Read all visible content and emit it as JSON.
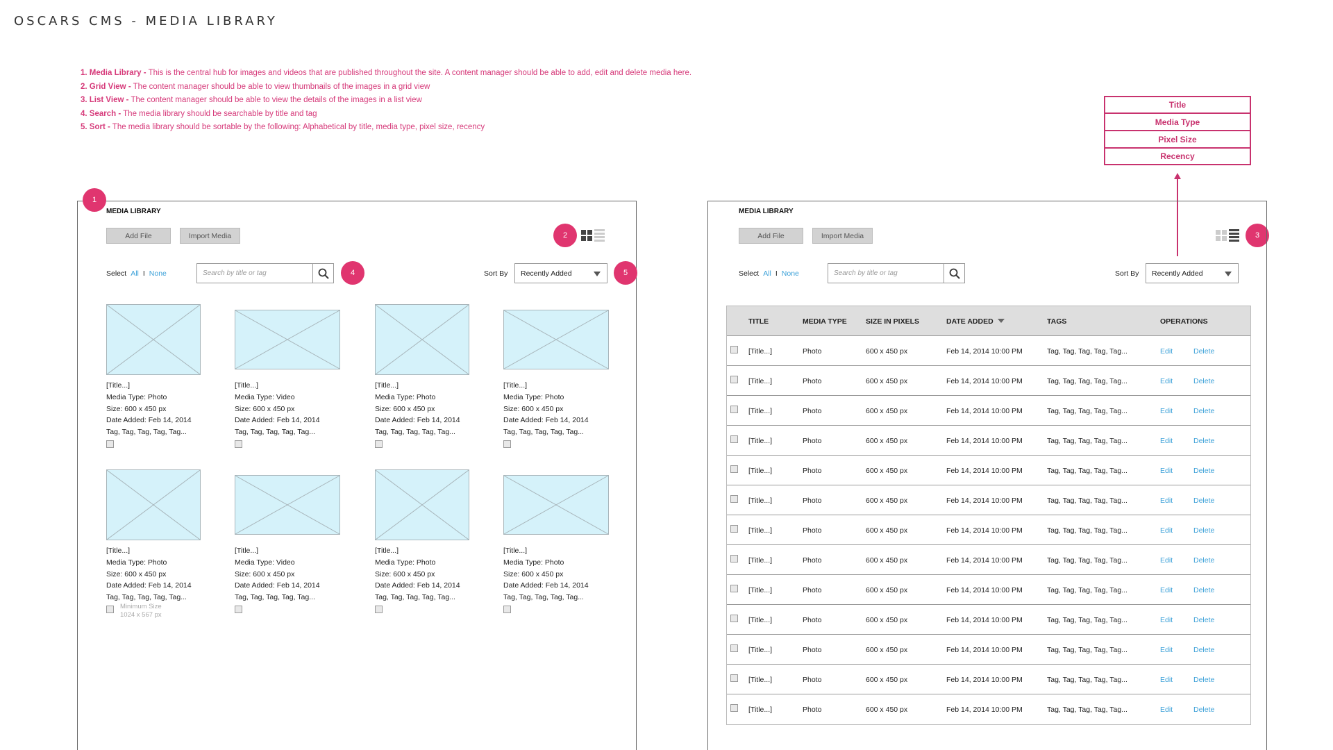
{
  "page_title": "OSCARS CMS - MEDIA LIBRARY",
  "notes": [
    {
      "label": "1. Media Library -",
      "text": " This is the central hub for images and videos that are published throughout the site. A content manager should be able to add, edit and delete media here."
    },
    {
      "label": "2. Grid View -",
      "text": " The content manager should be able to view thumbnails of the images in a grid view"
    },
    {
      "label": "3. List View -",
      "text": " The content manager should be able to view the details of the images in a list view"
    },
    {
      "label": "4. Search -",
      "text": " The media library should be searchable by title and tag"
    },
    {
      "label": "5. Sort -",
      "text": " The media library should be sortable by the following: Alphabetical by title, media type, pixel size, recency"
    }
  ],
  "sort_options": [
    "Title",
    "Media Type",
    "Pixel Size",
    "Recency"
  ],
  "badges": [
    "1",
    "2",
    "3",
    "4",
    "5"
  ],
  "colors": {
    "accent": "#e0356f",
    "link": "#3aa0d8",
    "thumb": "#d5f2fa"
  },
  "library": {
    "heading": "MEDIA LIBRARY",
    "add_file": "Add File",
    "import_media": "Import Media",
    "select_label": "Select",
    "select_all": "All",
    "select_separator": "I",
    "select_none": "None",
    "search_placeholder": "Search by title or tag",
    "sort_label": "Sort By",
    "sort_value": "Recently Added"
  },
  "grid_items": [
    {
      "title": "[Title...]",
      "type": "Media Type: Photo",
      "size": "Size: 600 x 450 px",
      "date": "Date Added: Feb 14, 2014",
      "tags": "Tag, Tag, Tag, Tag, Tag..."
    },
    {
      "title": "[Title...]",
      "type": "Media Type: Video",
      "size": "Size: 600 x 450 px",
      "date": "Date Added: Feb 14, 2014",
      "tags": "Tag, Tag, Tag, Tag, Tag..."
    },
    {
      "title": "[Title...]",
      "type": "Media Type: Photo",
      "size": "Size: 600 x 450 px",
      "date": "Date Added: Feb 14, 2014",
      "tags": "Tag, Tag, Tag, Tag, Tag..."
    },
    {
      "title": "[Title...]",
      "type": "Media Type: Photo",
      "size": "Size: 600 x 450 px",
      "date": "Date Added: Feb 14, 2014",
      "tags": "Tag, Tag, Tag, Tag, Tag..."
    },
    {
      "title": "[Title...]",
      "type": "Media Type: Photo",
      "size": "Size: 600 x 450 px",
      "date": "Date Added: Feb 14, 2014",
      "tags": "Tag, Tag, Tag, Tag, Tag..."
    },
    {
      "title": "[Title...]",
      "type": "Media Type: Video",
      "size": "Size: 600 x 450 px",
      "date": "Date Added: Feb 14, 2014",
      "tags": "Tag, Tag, Tag, Tag, Tag..."
    },
    {
      "title": "[Title...]",
      "type": "Media Type: Photo",
      "size": "Size: 600 x 450 px",
      "date": "Date Added: Feb 14, 2014",
      "tags": "Tag, Tag, Tag, Tag, Tag..."
    },
    {
      "title": "[Title...]",
      "type": "Media Type: Photo",
      "size": "Size: 600 x 450 px",
      "date": "Date Added: Feb 14, 2014",
      "tags": "Tag, Tag, Tag, Tag, Tag..."
    }
  ],
  "min_size_note": {
    "line1": "Minimum Size",
    "line2": "1024 x 567 px"
  },
  "table": {
    "headers": [
      "TITLE",
      "MEDIA TYPE",
      "SIZE IN PIXELS",
      "DATE ADDED",
      "TAGS",
      "OPERATIONS"
    ],
    "rows": [
      {
        "title": "[Title...]",
        "type": "Photo",
        "size": "600 x 450 px",
        "date": "Feb 14, 2014 10:00 PM",
        "tags": "Tag, Tag, Tag, Tag, Tag...",
        "edit": "Edit",
        "delete": "Delete"
      },
      {
        "title": "[Title...]",
        "type": "Photo",
        "size": "600 x 450 px",
        "date": "Feb 14, 2014 10:00 PM",
        "tags": "Tag, Tag, Tag, Tag, Tag...",
        "edit": "Edit",
        "delete": "Delete"
      },
      {
        "title": "[Title...]",
        "type": "Photo",
        "size": "600 x 450 px",
        "date": "Feb 14, 2014 10:00 PM",
        "tags": "Tag, Tag, Tag, Tag, Tag...",
        "edit": "Edit",
        "delete": "Delete"
      },
      {
        "title": "[Title...]",
        "type": "Photo",
        "size": "600 x 450 px",
        "date": "Feb 14, 2014 10:00 PM",
        "tags": "Tag, Tag, Tag, Tag, Tag...",
        "edit": "Edit",
        "delete": "Delete"
      },
      {
        "title": "[Title...]",
        "type": "Photo",
        "size": "600 x 450 px",
        "date": "Feb 14, 2014 10:00 PM",
        "tags": "Tag, Tag, Tag, Tag, Tag...",
        "edit": "Edit",
        "delete": "Delete"
      },
      {
        "title": "[Title...]",
        "type": "Photo",
        "size": "600 x 450 px",
        "date": "Feb 14, 2014 10:00 PM",
        "tags": "Tag, Tag, Tag, Tag, Tag...",
        "edit": "Edit",
        "delete": "Delete"
      },
      {
        "title": "[Title...]",
        "type": "Photo",
        "size": "600 x 450 px",
        "date": "Feb 14, 2014 10:00 PM",
        "tags": "Tag, Tag, Tag, Tag, Tag...",
        "edit": "Edit",
        "delete": "Delete"
      },
      {
        "title": "[Title...]",
        "type": "Photo",
        "size": "600 x 450 px",
        "date": "Feb 14, 2014 10:00 PM",
        "tags": "Tag, Tag, Tag, Tag, Tag...",
        "edit": "Edit",
        "delete": "Delete"
      },
      {
        "title": "[Title...]",
        "type": "Photo",
        "size": "600 x 450 px",
        "date": "Feb 14, 2014 10:00 PM",
        "tags": "Tag, Tag, Tag, Tag, Tag...",
        "edit": "Edit",
        "delete": "Delete"
      },
      {
        "title": "[Title...]",
        "type": "Photo",
        "size": "600 x 450 px",
        "date": "Feb 14, 2014 10:00 PM",
        "tags": "Tag, Tag, Tag, Tag, Tag...",
        "edit": "Edit",
        "delete": "Delete"
      },
      {
        "title": "[Title...]",
        "type": "Photo",
        "size": "600 x 450 px",
        "date": "Feb 14, 2014 10:00 PM",
        "tags": "Tag, Tag, Tag, Tag, Tag...",
        "edit": "Edit",
        "delete": "Delete"
      },
      {
        "title": "[Title...]",
        "type": "Photo",
        "size": "600 x 450 px",
        "date": "Feb 14, 2014 10:00 PM",
        "tags": "Tag, Tag, Tag, Tag, Tag...",
        "edit": "Edit",
        "delete": "Delete"
      },
      {
        "title": "[Title...]",
        "type": "Photo",
        "size": "600 x 450 px",
        "date": "Feb 14, 2014 10:00 PM",
        "tags": "Tag, Tag, Tag, Tag, Tag...",
        "edit": "Edit",
        "delete": "Delete"
      }
    ]
  }
}
